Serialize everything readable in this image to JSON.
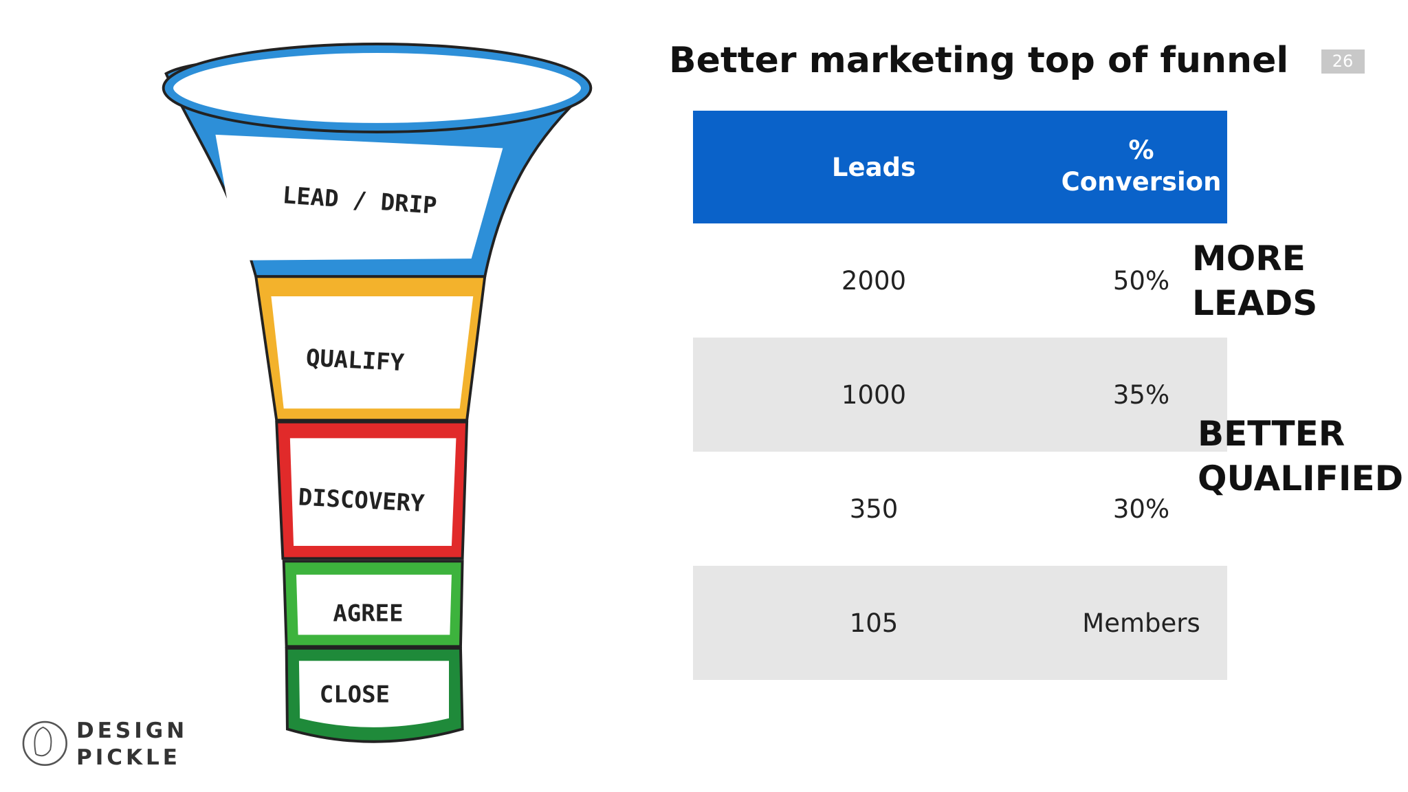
{
  "header": {
    "title": "Better marketing top of funnel",
    "page_number": "26"
  },
  "table": {
    "header": [
      "Leads",
      "% Conversion"
    ],
    "rows": [
      [
        "2000",
        "50%"
      ],
      [
        "1000",
        "35%"
      ],
      [
        "350",
        "30%"
      ],
      [
        "105",
        "Members"
      ]
    ]
  },
  "annotations": [
    "MORE LEADS",
    "BETTER QUALIFIED"
  ],
  "funnel": {
    "stages": [
      "LEAD / DRIP",
      "QUALIFY",
      "DISCOVERY",
      "AGREE",
      "CLOSE"
    ]
  },
  "logo": [
    "DESIGN",
    "PICKLE"
  ]
}
